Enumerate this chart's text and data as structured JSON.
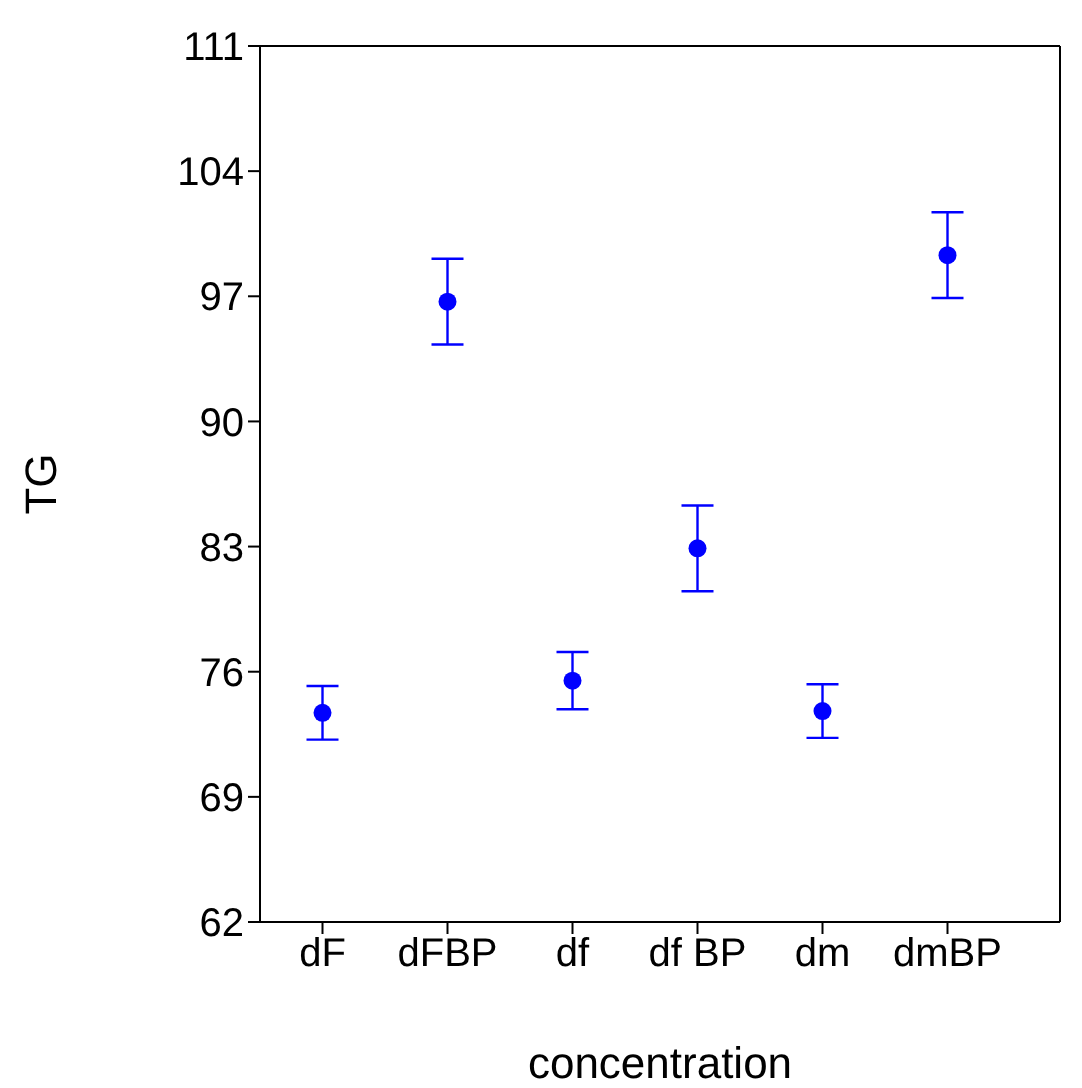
{
  "chart_data": {
    "type": "scatter",
    "xlabel": "concentration",
    "ylabel": "TG",
    "categories": [
      "dF",
      "dFBP",
      "df",
      "df BP",
      "dm",
      "dmBP"
    ],
    "values": [
      73.7,
      96.7,
      75.5,
      82.9,
      73.8,
      99.3
    ],
    "errors": [
      1.5,
      2.4,
      1.6,
      2.4,
      1.5,
      2.4
    ],
    "color": "#0000ff",
    "marker": "circle",
    "grid": false,
    "ylim": [
      62,
      111
    ],
    "yticks": [
      62,
      69,
      76,
      83,
      90,
      97,
      104,
      111
    ]
  }
}
